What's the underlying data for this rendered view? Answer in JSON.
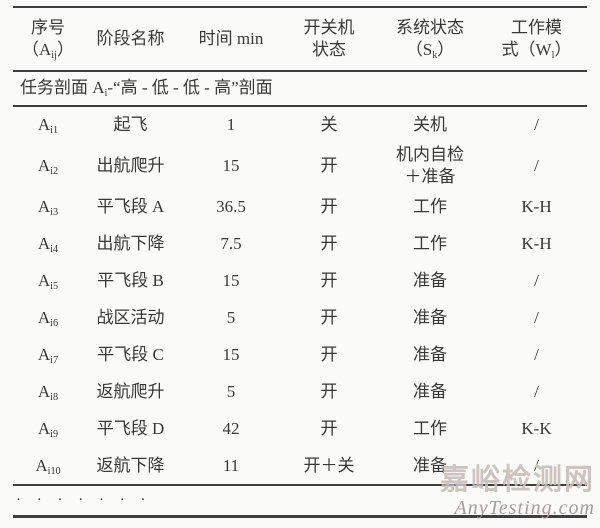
{
  "table": {
    "columns": [
      {
        "id": "serial",
        "lines": [
          "序号",
          "（A_{ij}）"
        ]
      },
      {
        "id": "phase-name",
        "lines": [
          "阶段名称"
        ]
      },
      {
        "id": "time-min",
        "lines": [
          "时间 min"
        ]
      },
      {
        "id": "switch-state",
        "lines": [
          "开关机",
          "状态"
        ]
      },
      {
        "id": "system-state",
        "lines": [
          "系统状态",
          "（S_{k}）"
        ]
      },
      {
        "id": "work-mode",
        "lines": [
          "工作模",
          "式（W_{l}）"
        ]
      }
    ],
    "profile_row": "任务剖面 A_{i}-“高 - 低 - 低 - 高”剖面",
    "rows": [
      {
        "serial": "A_{i1}",
        "phase": "起飞",
        "time": "1",
        "switch": "关",
        "system": [
          "关机"
        ],
        "mode": "/"
      },
      {
        "serial": "A_{i2}",
        "phase": "出航爬升",
        "time": "15",
        "switch": "开",
        "system": [
          "机内自检",
          "＋准备"
        ],
        "mode": "/"
      },
      {
        "serial": "A_{i3}",
        "phase": "平飞段 A",
        "time": "36.5",
        "switch": "开",
        "system": [
          "工作"
        ],
        "mode": "K-H"
      },
      {
        "serial": "A_{i4}",
        "phase": "出航下降",
        "time": "7.5",
        "switch": "开",
        "system": [
          "工作"
        ],
        "mode": "K-H"
      },
      {
        "serial": "A_{i5}",
        "phase": "平飞段 B",
        "time": "15",
        "switch": "开",
        "system": [
          "准备"
        ],
        "mode": "/"
      },
      {
        "serial": "A_{i6}",
        "phase": "战区活动",
        "time": "5",
        "switch": "开",
        "system": [
          "准备"
        ],
        "mode": "/"
      },
      {
        "serial": "A_{i7}",
        "phase": "平飞段 C",
        "time": "15",
        "switch": "开",
        "system": [
          "准备"
        ],
        "mode": "/"
      },
      {
        "serial": "A_{i8}",
        "phase": "返航爬升",
        "time": "5",
        "switch": "开",
        "system": [
          "准备"
        ],
        "mode": "/"
      },
      {
        "serial": "A_{i9}",
        "phase": "平飞段 D",
        "time": "42",
        "switch": "开",
        "system": [
          "工作"
        ],
        "mode": "K-K"
      },
      {
        "serial": "A_{i10}",
        "phase": "返航下降",
        "time": "11",
        "switch": "开＋关",
        "system": [
          "准备"
        ],
        "mode": "/"
      }
    ],
    "ellipsis": "· · · · · · ·"
  },
  "watermark": {
    "line1": "嘉峪检测网",
    "line2": "AnyTesting.com",
    "color1": "#c9bebb",
    "color2": "#9e9b98"
  },
  "colors": {
    "text": "#383838",
    "rule": "#3e3e3e",
    "background": "#fafaf9"
  }
}
